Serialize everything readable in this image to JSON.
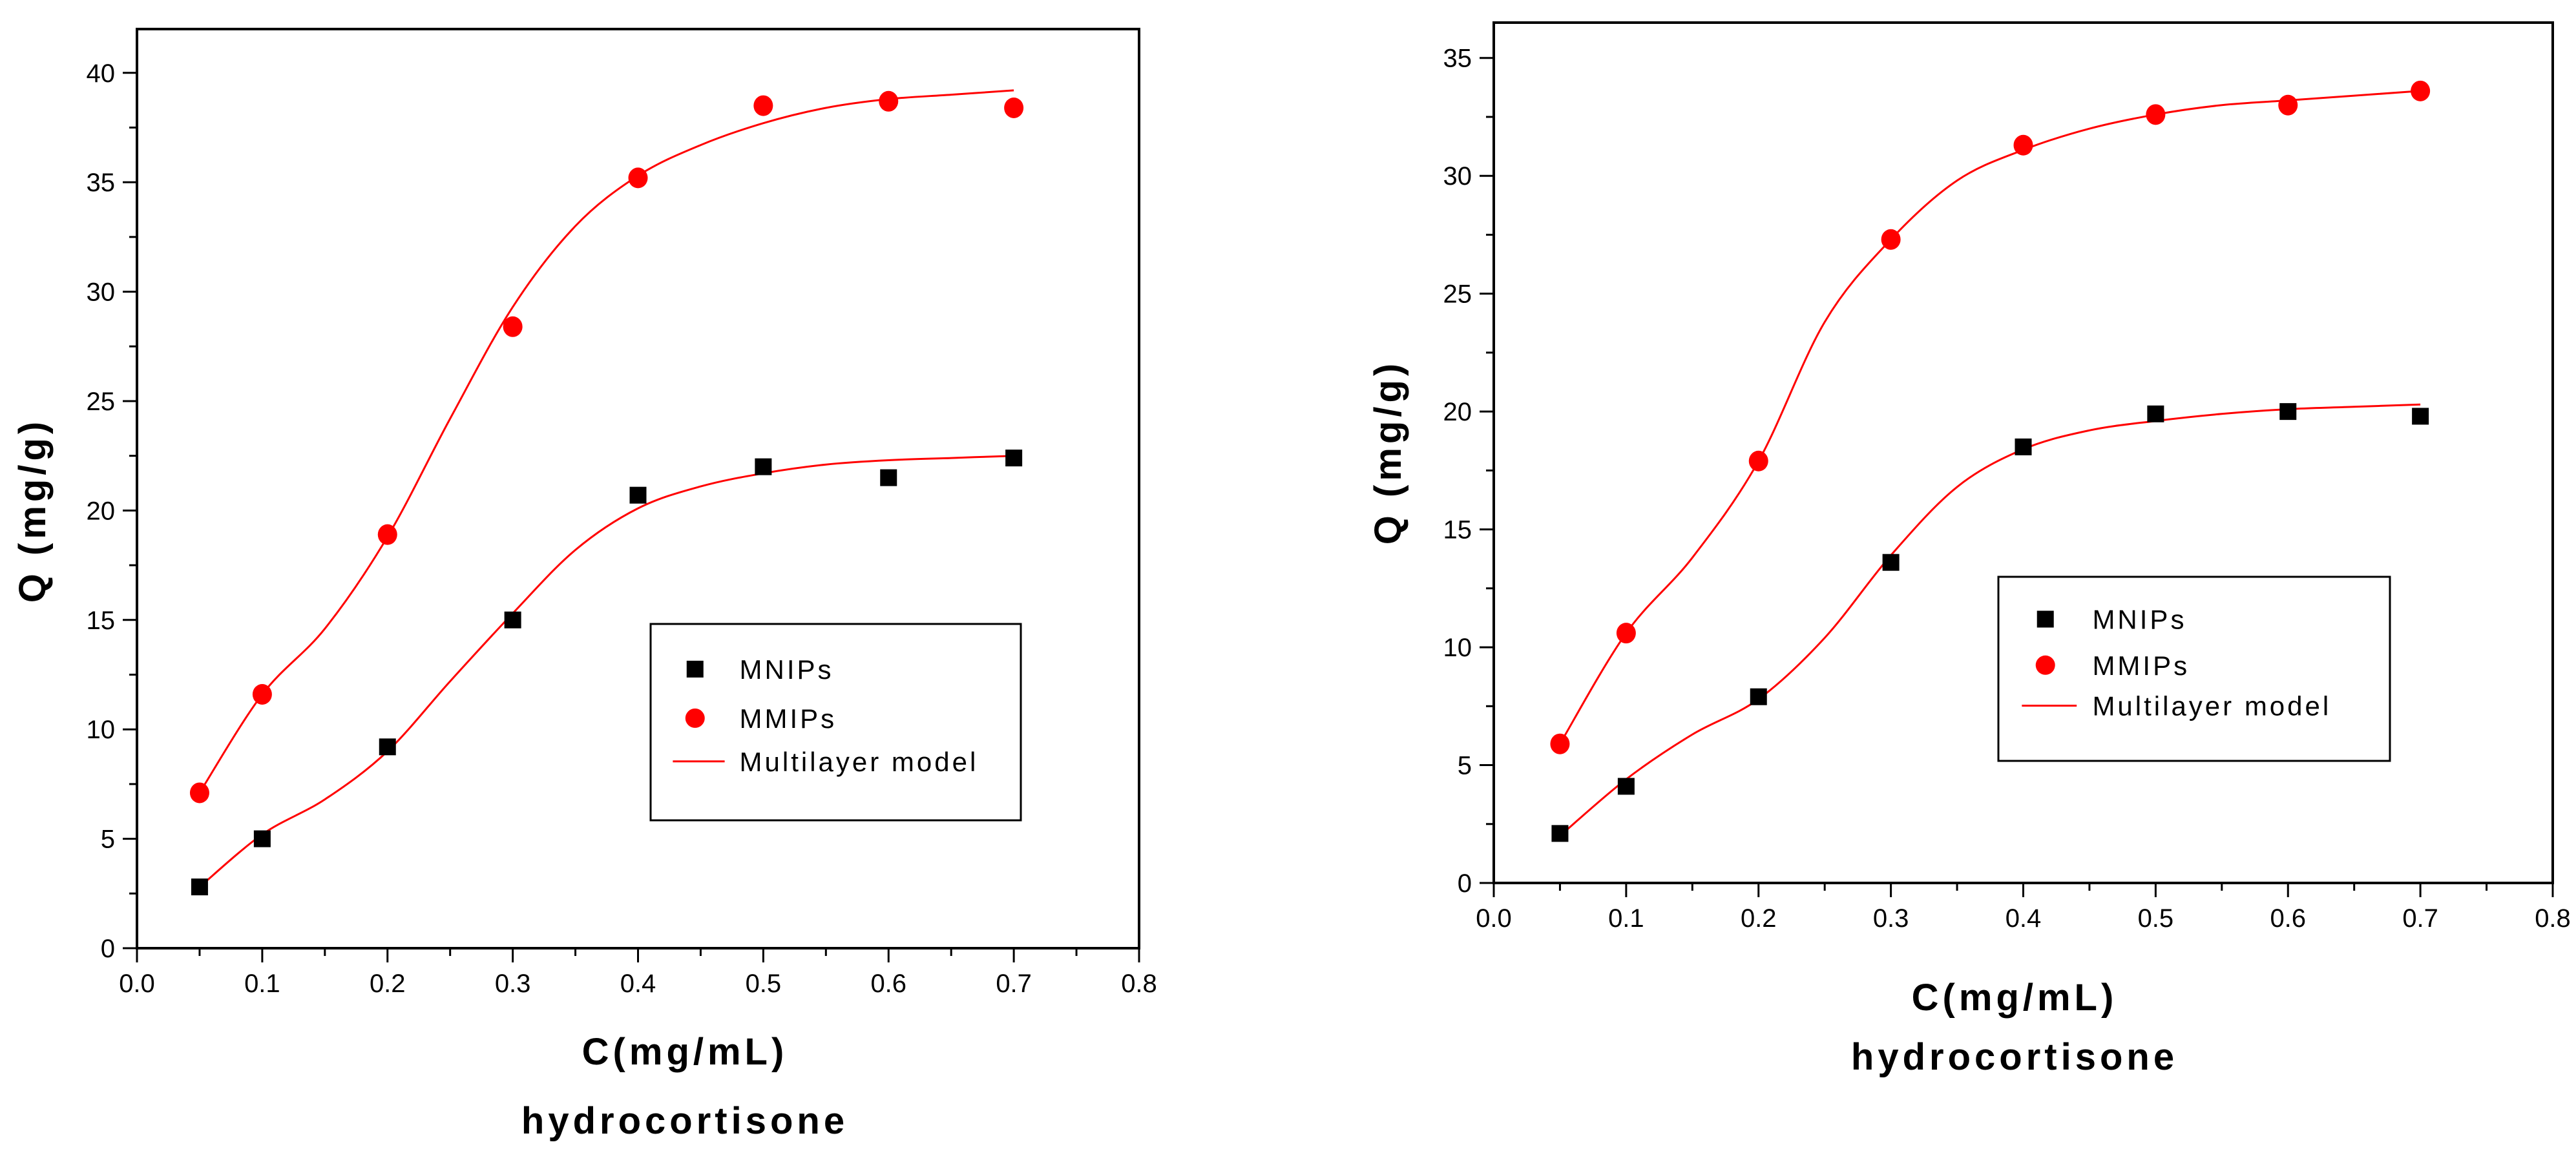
{
  "chart_data": [
    {
      "type": "scatter",
      "title": "",
      "xlabel": "C(mg/mL)",
      "xlabel2": "hydrocortisone",
      "ylabel": "Q (mg/g)",
      "xlim": [
        0.0,
        0.8
      ],
      "ylim": [
        0,
        42
      ],
      "xticks": [
        0.0,
        0.1,
        0.2,
        0.3,
        0.4,
        0.5,
        0.6,
        0.7,
        0.8
      ],
      "xtick_labels": [
        "0.0",
        "0.1",
        "0.2",
        "0.3",
        "0.4",
        "0.5",
        "0.6",
        "0.7",
        "0.8"
      ],
      "yticks": [
        0,
        5,
        10,
        15,
        20,
        25,
        30,
        35,
        40
      ],
      "ytick_labels": [
        "0",
        "5",
        "10",
        "15",
        "20",
        "25",
        "30",
        "35",
        "40"
      ],
      "legend_position": "right-middle",
      "series": [
        {
          "name": "MNIPs",
          "marker": "square",
          "color": "#000000",
          "x": [
            0.05,
            0.1,
            0.2,
            0.3,
            0.4,
            0.5,
            0.6,
            0.7
          ],
          "y": [
            2.8,
            5.0,
            9.2,
            15.0,
            20.7,
            22.0,
            21.5,
            22.4
          ]
        },
        {
          "name": "MMIPs",
          "marker": "circle",
          "color": "#ff0000",
          "x": [
            0.05,
            0.1,
            0.2,
            0.3,
            0.4,
            0.5,
            0.6,
            0.7
          ],
          "y": [
            7.1,
            11.6,
            18.9,
            28.4,
            35.2,
            38.5,
            38.7,
            38.4
          ]
        }
      ],
      "fits": [
        {
          "name": "Multilayer model",
          "color": "#ff0000",
          "x": [
            0.05,
            0.1,
            0.15,
            0.2,
            0.25,
            0.3,
            0.35,
            0.4,
            0.45,
            0.5,
            0.55,
            0.6,
            0.65,
            0.7
          ],
          "y": [
            2.8,
            5.2,
            6.8,
            9.0,
            12.2,
            15.3,
            18.2,
            20.1,
            21.1,
            21.7,
            22.1,
            22.3,
            22.4,
            22.5
          ]
        },
        {
          "name": "Multilayer model",
          "color": "#ff0000",
          "x": [
            0.05,
            0.1,
            0.15,
            0.2,
            0.25,
            0.3,
            0.35,
            0.4,
            0.45,
            0.5,
            0.55,
            0.6,
            0.65,
            0.7
          ],
          "y": [
            7.1,
            11.6,
            14.6,
            18.8,
            24.2,
            29.3,
            33.0,
            35.3,
            36.7,
            37.7,
            38.4,
            38.8,
            39.0,
            39.2
          ]
        }
      ],
      "legend": [
        "MNIPs",
        "MMIPs",
        "Multilayer model"
      ]
    },
    {
      "type": "scatter",
      "title": "",
      "xlabel": "C(mg/mL)",
      "xlabel2": "hydrocortisone",
      "ylabel": "Q (mg/g)",
      "xlim": [
        0.0,
        0.8
      ],
      "ylim": [
        0,
        36.5
      ],
      "xticks": [
        0.0,
        0.1,
        0.2,
        0.3,
        0.4,
        0.5,
        0.6,
        0.7,
        0.8
      ],
      "xtick_labels": [
        "0.0",
        "0.1",
        "0.2",
        "0.3",
        "0.4",
        "0.5",
        "0.6",
        "0.7",
        "0.8"
      ],
      "yticks": [
        0,
        5,
        10,
        15,
        20,
        25,
        30,
        35
      ],
      "ytick_labels": [
        "0",
        "5",
        "10",
        "15",
        "20",
        "25",
        "30",
        "35"
      ],
      "legend_position": "right-middle",
      "series": [
        {
          "name": "MNIPs",
          "marker": "square",
          "color": "#000000",
          "x": [
            0.05,
            0.1,
            0.2,
            0.3,
            0.4,
            0.5,
            0.6,
            0.7
          ],
          "y": [
            2.1,
            4.1,
            7.9,
            13.6,
            18.5,
            19.9,
            20.0,
            19.8
          ]
        },
        {
          "name": "MMIPs",
          "marker": "circle",
          "color": "#ff0000",
          "x": [
            0.05,
            0.1,
            0.2,
            0.3,
            0.4,
            0.5,
            0.6,
            0.7
          ],
          "y": [
            5.9,
            10.6,
            17.9,
            27.3,
            31.3,
            32.6,
            33.0,
            33.6
          ]
        }
      ],
      "fits": [
        {
          "name": "Multilayer model",
          "color": "#ff0000",
          "x": [
            0.05,
            0.1,
            0.15,
            0.2,
            0.25,
            0.3,
            0.35,
            0.4,
            0.45,
            0.5,
            0.55,
            0.6,
            0.65,
            0.7
          ],
          "y": [
            2.0,
            4.4,
            6.3,
            7.8,
            10.4,
            13.9,
            16.8,
            18.4,
            19.2,
            19.6,
            19.9,
            20.1,
            20.2,
            20.3
          ]
        },
        {
          "name": "Multilayer model",
          "color": "#ff0000",
          "x": [
            0.05,
            0.1,
            0.15,
            0.2,
            0.25,
            0.3,
            0.35,
            0.4,
            0.45,
            0.5,
            0.55,
            0.6,
            0.65,
            0.7
          ],
          "y": [
            5.9,
            10.6,
            13.8,
            17.9,
            23.8,
            27.3,
            29.8,
            31.1,
            32.0,
            32.6,
            33.0,
            33.2,
            33.4,
            33.6
          ]
        }
      ],
      "legend": [
        "MNIPs",
        "MMIPs",
        "Multilayer model"
      ]
    }
  ]
}
